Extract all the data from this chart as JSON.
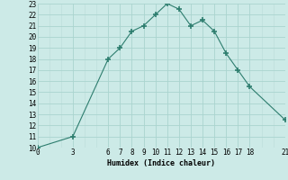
{
  "x": [
    0,
    3,
    6,
    7,
    8,
    9,
    10,
    11,
    12,
    13,
    14,
    15,
    16,
    17,
    18,
    21
  ],
  "y": [
    10,
    11,
    18,
    19,
    20.5,
    21,
    22,
    23,
    22.5,
    21,
    21.5,
    20.5,
    18.5,
    17,
    15.5,
    12.5
  ],
  "title": "",
  "xlabel": "Humidex (Indice chaleur)",
  "ylabel": "",
  "xlim": [
    0,
    21
  ],
  "ylim": [
    10,
    23
  ],
  "xticks": [
    0,
    3,
    6,
    7,
    8,
    9,
    10,
    11,
    12,
    13,
    14,
    15,
    16,
    17,
    18,
    21
  ],
  "yticks": [
    10,
    11,
    12,
    13,
    14,
    15,
    16,
    17,
    18,
    19,
    20,
    21,
    22,
    23
  ],
  "line_color": "#2d7d6e",
  "marker": "+",
  "marker_size": 4,
  "bg_color": "#cceae7",
  "grid_major_color": "#aad4cf",
  "grid_minor_color": "#bbddd9"
}
